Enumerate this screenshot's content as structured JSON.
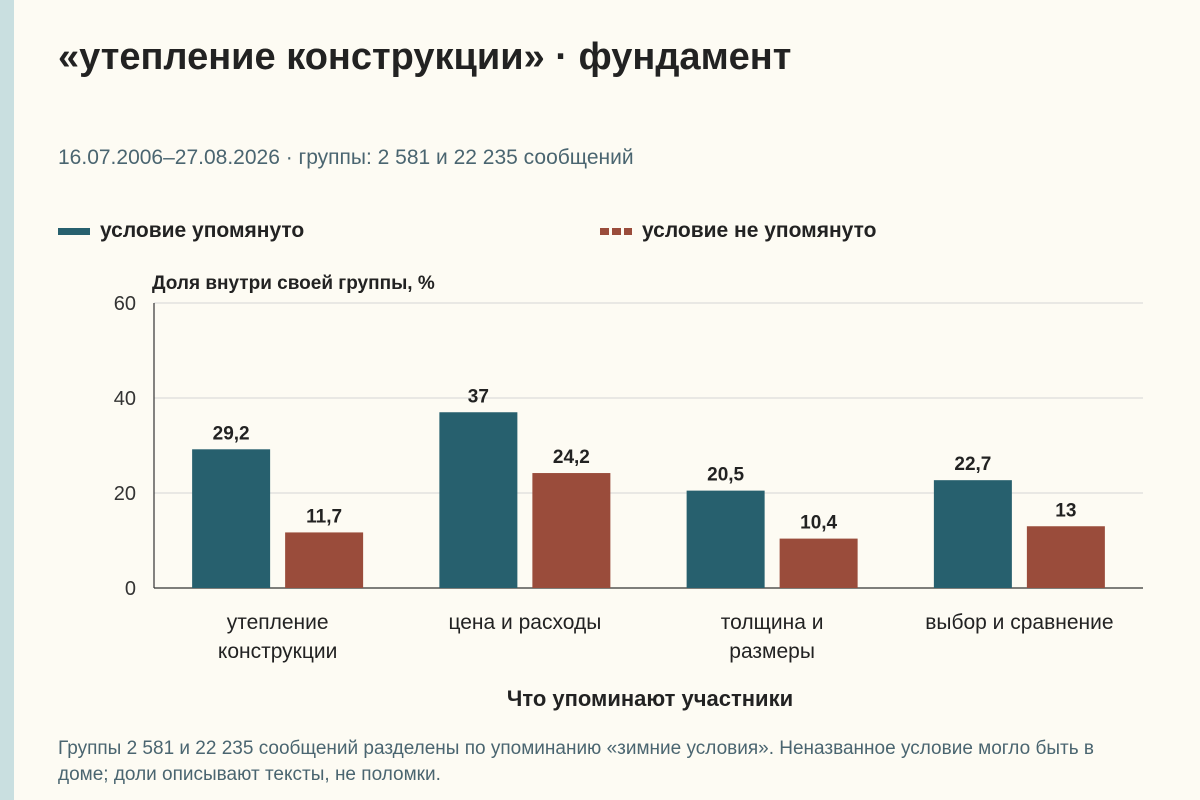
{
  "title": "«утепление конструкции» · фундамент",
  "subtitle": "16.07.2006–27.08.2026 · группы: 2 581 и 22 235 сообщений",
  "footnote": "Группы 2 581 и 22 235 сообщений разделены по упоминанию «зимние условия». Неназванное условие могло быть в доме; доли описывают тексты, не поломки.",
  "colors": {
    "accent_side": "#c9dfe0",
    "series_a": "#27606e",
    "series_b": "#9a4c3b",
    "grid": "#d5d5d5"
  },
  "chart_data": {
    "type": "bar",
    "title": "«утепление конструкции» · фундамент",
    "xlabel": "Что упоминают участники",
    "ylabel": "Доля внутри своей группы, %",
    "ylim": [
      0,
      60
    ],
    "yticks": [
      0,
      20,
      40,
      60
    ],
    "grid": true,
    "legend_position": "top",
    "categories": [
      [
        "утепление",
        "конструкции"
      ],
      [
        "цена и расходы"
      ],
      [
        "толщина и",
        "размеры"
      ],
      [
        "выбор и сравнение"
      ]
    ],
    "series": [
      {
        "name": "условие упомянуто",
        "values": [
          29.2,
          37,
          20.5,
          22.7
        ],
        "labels": [
          "29,2",
          "37",
          "20,5",
          "22,7"
        ]
      },
      {
        "name": "условие не упомянуто",
        "values": [
          11.7,
          24.2,
          10.4,
          13
        ],
        "labels": [
          "11,7",
          "24,2",
          "10,4",
          "13"
        ]
      }
    ]
  }
}
